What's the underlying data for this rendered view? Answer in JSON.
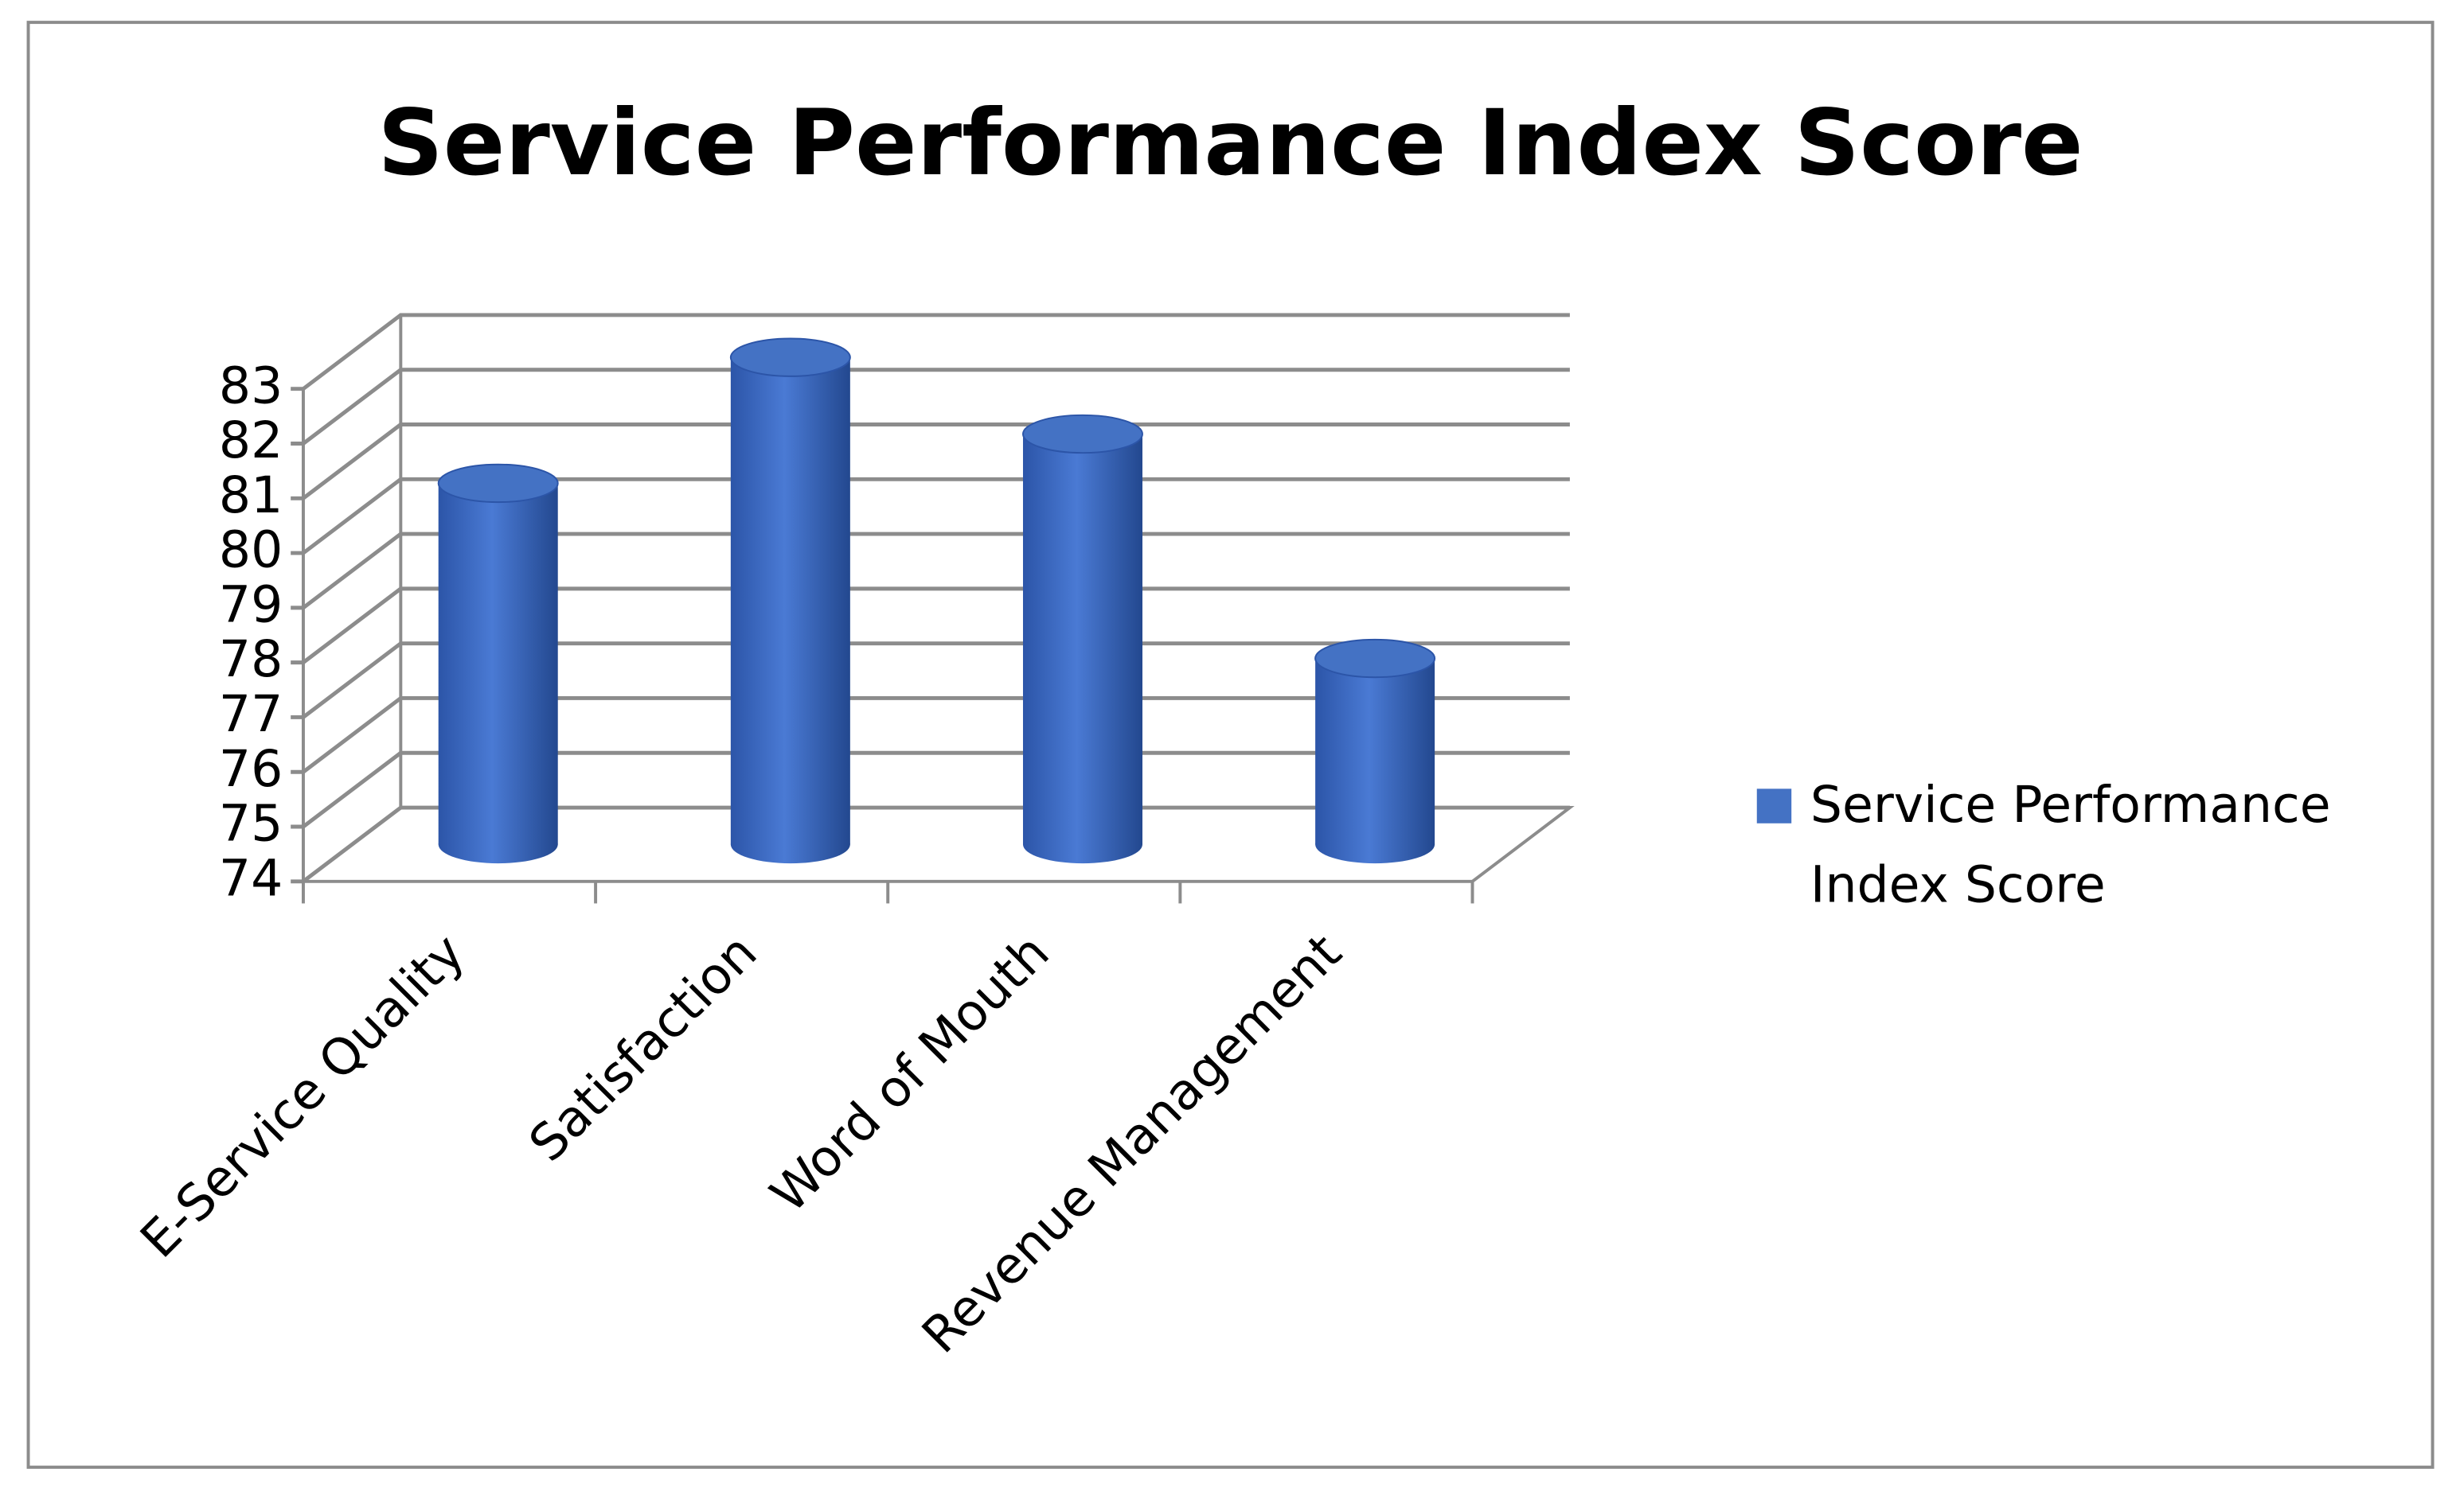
{
  "chart_data": {
    "type": "bar",
    "title": "Service Performance Index Score",
    "categories": [
      "E-Service Quality",
      "Satisfaction",
      "Word of Mouth",
      "Revenue Management"
    ],
    "series": [
      {
        "name": "Service Performance Index Score",
        "color": "#4472c4",
        "values": [
          80.6,
          82.9,
          81.5,
          77.4
        ]
      }
    ],
    "ylim": [
      74,
      83
    ],
    "yticks": [
      74,
      75,
      76,
      77,
      78,
      79,
      80,
      81,
      82,
      83
    ],
    "grid": true,
    "legend": "right"
  }
}
